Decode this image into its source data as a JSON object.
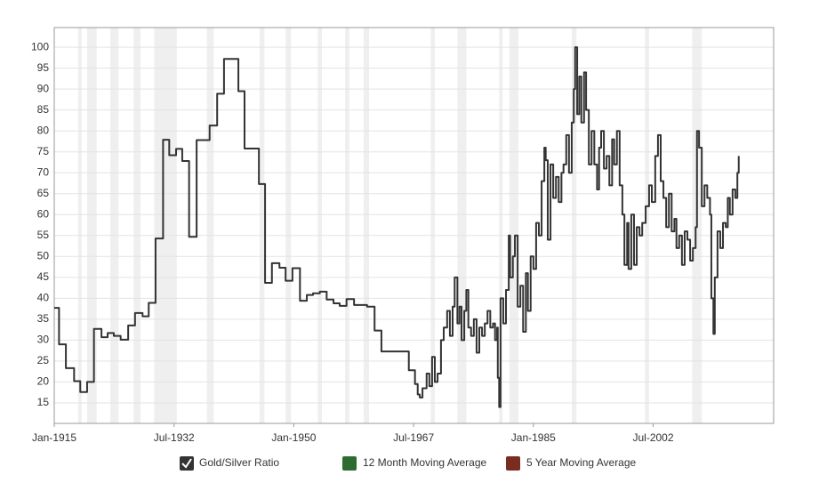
{
  "chart_data": {
    "type": "line",
    "x": [
      1915.0,
      1915.7,
      1916.7,
      1917.9,
      1918.8,
      1919.8,
      1920.8,
      1921.9,
      1922.8,
      1923.7,
      1924.7,
      1925.8,
      1926.8,
      1927.9,
      1928.8,
      1929.8,
      1930.9,
      1931.8,
      1932.8,
      1933.7,
      1934.7,
      1935.8,
      1937.7,
      1938.8,
      1939.8,
      1941.9,
      1942.8,
      1944.9,
      1945.8,
      1946.8,
      1947.9,
      1948.8,
      1949.8,
      1950.9,
      1951.9,
      1952.8,
      1953.8,
      1954.8,
      1955.8,
      1956.7,
      1957.7,
      1958.8,
      1960.7,
      1961.8,
      1962.8,
      1966.8,
      1967.7,
      1968.1,
      1968.4,
      1968.8,
      1969.4,
      1969.8,
      1970.2,
      1970.6,
      1971.0,
      1971.5,
      1971.9,
      1972.4,
      1972.8,
      1973.2,
      1973.5,
      1973.9,
      1974.2,
      1974.5,
      1974.9,
      1975.2,
      1975.5,
      1975.9,
      1976.3,
      1976.7,
      1977.1,
      1977.5,
      1977.9,
      1978.3,
      1978.7,
      1979.1,
      1979.4,
      1979.7,
      1979.8,
      1980.0,
      1980.2,
      1980.6,
      1981.0,
      1981.4,
      1981.6,
      1982.0,
      1982.3,
      1982.7,
      1983.1,
      1983.5,
      1983.9,
      1984.2,
      1984.6,
      1985.0,
      1985.4,
      1985.8,
      1986.2,
      1986.6,
      1986.8,
      1987.1,
      1987.5,
      1987.9,
      1988.3,
      1988.7,
      1989.1,
      1989.4,
      1989.8,
      1990.2,
      1990.6,
      1990.9,
      1991.1,
      1991.4,
      1991.7,
      1992.0,
      1992.4,
      1992.7,
      1993.1,
      1993.5,
      1993.9,
      1994.3,
      1994.6,
      1994.9,
      1995.3,
      1995.7,
      1996.1,
      1996.5,
      1996.8,
      1997.2,
      1997.6,
      1998.0,
      1998.3,
      1998.7,
      1998.9,
      1999.3,
      1999.7,
      2000.1,
      2000.5,
      2000.9,
      2001.4,
      2001.9,
      2002.3,
      2002.8,
      2003.2,
      2003.6,
      2004.0,
      2004.4,
      2004.8,
      2005.2,
      2005.6,
      2005.9,
      2006.3,
      2006.7,
      2007.1,
      2007.5,
      2007.9,
      2008.3,
      2008.7,
      2008.9,
      2009.2,
      2009.6,
      2010.0,
      2010.4,
      2010.8,
      2011.0,
      2011.3,
      2011.5,
      2011.9,
      2012.3,
      2012.7,
      2013.1,
      2013.4,
      2013.7,
      2014.1,
      2014.5,
      2014.8,
      2015.0
    ],
    "series": [
      {
        "name": "Gold/Silver Ratio",
        "color": "#333333",
        "values": [
          37.7,
          29,
          23.3,
          20.2,
          17.6,
          20,
          32.7,
          30.7,
          31.7,
          31,
          30.1,
          33.5,
          36.5,
          35.7,
          38.9,
          54.3,
          77.9,
          74.2,
          75.7,
          72.8,
          54.7,
          77.8,
          81.3,
          88.9,
          97.2,
          89.5,
          75.8,
          67.3,
          43.7,
          48.4,
          47.3,
          44.2,
          47.2,
          39.4,
          40.8,
          41.2,
          41.6,
          39.7,
          38.8,
          38.2,
          39.8,
          38.4,
          38,
          32.3,
          27.3,
          22.8,
          19.5,
          17,
          16.3,
          18.5,
          22,
          19,
          26,
          20,
          22,
          30,
          33,
          37,
          31,
          38,
          45,
          34,
          38,
          30,
          37,
          42,
          33,
          31,
          35,
          27,
          33,
          31,
          34,
          37,
          33,
          34,
          30,
          33,
          21,
          14,
          40,
          34,
          42,
          55,
          45,
          50,
          55,
          38,
          43,
          32,
          46,
          37,
          50,
          47,
          58,
          55,
          68,
          76,
          73,
          54,
          72,
          64,
          69,
          63,
          70,
          72,
          79,
          70,
          82,
          90,
          100,
          84,
          93,
          82,
          94,
          85,
          72,
          80,
          72,
          66,
          76,
          80,
          71,
          74,
          67,
          78,
          72,
          80,
          67,
          60,
          48,
          58,
          47,
          60,
          48,
          57,
          55,
          58,
          62,
          67,
          63,
          74,
          79,
          68,
          64,
          57,
          65,
          56,
          59,
          52,
          55,
          48,
          56,
          54,
          49,
          52,
          57,
          80,
          76,
          62,
          67,
          64,
          60,
          40,
          31.5,
          45,
          56,
          52,
          58,
          57,
          64,
          60,
          66,
          64,
          70,
          74
        ]
      }
    ],
    "legend_items": [
      {
        "name": "12 Month Moving Average",
        "color": "#2e6b30"
      },
      {
        "name": "5 Year Moving Average",
        "color": "#7b2c20"
      }
    ],
    "shaded_ranges": [
      [
        1918.5,
        1919.0
      ],
      [
        1919.8,
        1921.2
      ],
      [
        1923.2,
        1924.4
      ],
      [
        1926.6,
        1927.6
      ],
      [
        1929.6,
        1932.9
      ],
      [
        1937.3,
        1938.3
      ],
      [
        1945.0,
        1945.7
      ],
      [
        1948.8,
        1949.6
      ],
      [
        1953.5,
        1954.1
      ],
      [
        1957.5,
        1958.1
      ],
      [
        1960.2,
        1961.0
      ],
      [
        1970.0,
        1970.6
      ],
      [
        1973.9,
        1975.2
      ],
      [
        1980.0,
        1980.5
      ],
      [
        1981.5,
        1982.8
      ],
      [
        1990.6,
        1991.3
      ],
      [
        2001.3,
        2001.9
      ],
      [
        2008.2,
        2009.6
      ]
    ],
    "shade_color": "#efefef",
    "step": "after",
    "xlim": [
      1915,
      2020.1
    ],
    "xticks": [
      {
        "value": 1915,
        "label": "Jan-1915"
      },
      {
        "value": 1932.5,
        "label": "Jul-1932"
      },
      {
        "value": 1950,
        "label": "Jan-1950"
      },
      {
        "value": 1967.5,
        "label": "Jul-1967"
      },
      {
        "value": 1985,
        "label": "Jan-1985"
      },
      {
        "value": 2002.5,
        "label": "Jul-2002"
      }
    ],
    "ylim": [
      10.1,
      104.7
    ],
    "yticks": [
      15,
      20,
      25,
      30,
      35,
      40,
      45,
      50,
      55,
      60,
      65,
      70,
      75,
      80,
      85,
      90,
      95,
      100
    ],
    "grid": true
  }
}
